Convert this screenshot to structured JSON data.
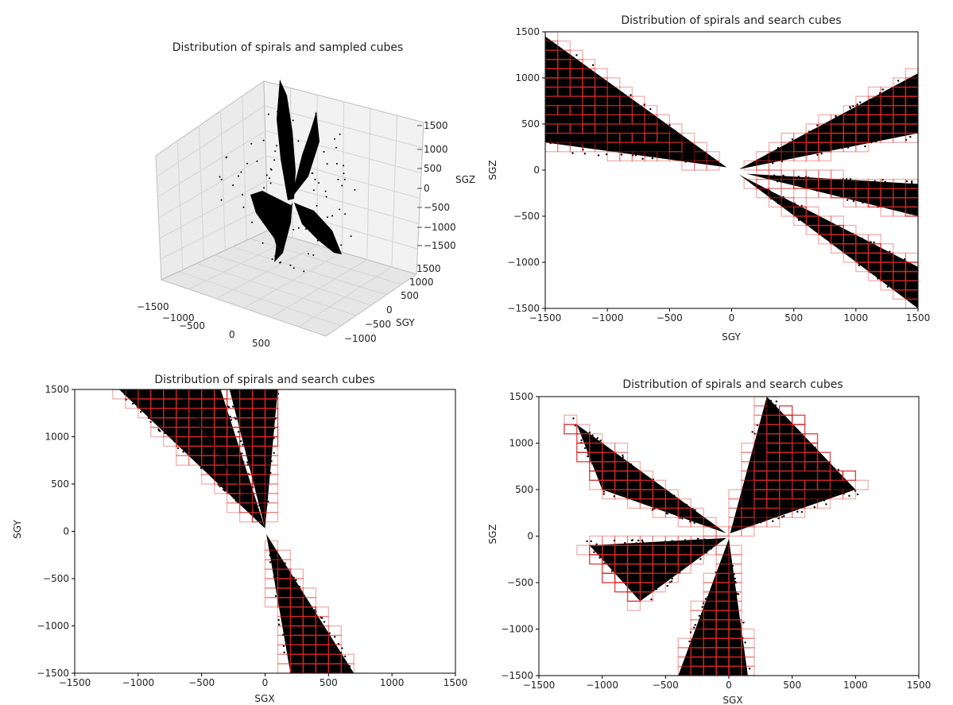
{
  "chart_data": [
    {
      "type": "scatter",
      "title": "Distribution of spirals and sampled cubes",
      "projection": "3d",
      "xlabel": "",
      "ylabel": "SGY",
      "zlabel": "SGZ",
      "xticks": [
        "−1500",
        "−1000",
        "−500",
        "0",
        "500"
      ],
      "yticks": [
        "1500",
        "1000",
        "500",
        "0",
        "−500",
        "−1000"
      ],
      "zticks": [
        "1500",
        "1000",
        "500",
        "0",
        "−500",
        "−1000",
        "−1500"
      ],
      "grid": true,
      "point_color": "#000000"
    },
    {
      "type": "scatter",
      "title": "Distribution of spirals and search cubes",
      "xlabel": "SGY",
      "ylabel": "SGZ",
      "xlim": [
        -1500,
        1500
      ],
      "ylim": [
        -1500,
        1500
      ],
      "xticks": [
        -1500,
        -1000,
        -500,
        0,
        500,
        1000,
        1500
      ],
      "yticks": [
        -1500,
        -1000,
        -500,
        0,
        500,
        1000,
        1500
      ],
      "series": [
        {
          "shape": "wedge",
          "from": [
            -40,
            30
          ],
          "end_a": [
            -1500,
            1450
          ],
          "end_b": [
            -1500,
            300
          ]
        },
        {
          "shape": "wedge",
          "from": [
            60,
            10
          ],
          "end_a": [
            1500,
            1050
          ],
          "end_b": [
            1500,
            400
          ]
        },
        {
          "shape": "wedge",
          "from": [
            120,
            -40
          ],
          "end_a": [
            1500,
            -150
          ],
          "end_b": [
            1500,
            -500
          ]
        },
        {
          "shape": "wedge",
          "from": [
            60,
            -50
          ],
          "end_a": [
            1500,
            -1050
          ],
          "end_b": [
            1500,
            -1500
          ]
        }
      ],
      "cube_size": 100,
      "cube_color": "#d62728"
    },
    {
      "type": "scatter",
      "title": "Distribution of spirals and search cubes",
      "xlabel": "SGX",
      "ylabel": "SGY",
      "xlim": [
        -1500,
        1500
      ],
      "ylim": [
        -1500,
        1500
      ],
      "xticks": [
        -1500,
        -1000,
        -500,
        0,
        500,
        1000,
        1500
      ],
      "yticks": [
        -1500,
        -1000,
        -500,
        0,
        500,
        1000,
        1500
      ],
      "series": [
        {
          "shape": "wedge",
          "from": [
            0,
            30
          ],
          "end_a": [
            -1150,
            1500
          ],
          "end_b": [
            -700,
            1500
          ]
        },
        {
          "shape": "wedge",
          "from": [
            0,
            30
          ],
          "end_a": [
            -700,
            1500
          ],
          "end_b": [
            -350,
            1500
          ]
        },
        {
          "shape": "wedge",
          "from": [
            0,
            30
          ],
          "end_a": [
            -280,
            1500
          ],
          "end_b": [
            100,
            1500
          ]
        },
        {
          "shape": "wedge",
          "from": [
            10,
            -30
          ],
          "end_a": [
            200,
            -1500
          ],
          "end_b": [
            700,
            -1500
          ]
        }
      ],
      "cube_size": 100,
      "cube_color": "#d62728"
    },
    {
      "type": "scatter",
      "title": "Distribution of spirals and search cubes",
      "xlabel": "SGX",
      "ylabel": "SGZ",
      "xlim": [
        -1500,
        1500
      ],
      "ylim": [
        -1500,
        1500
      ],
      "xticks": [
        -1500,
        -1000,
        -500,
        0,
        500,
        1000,
        1500
      ],
      "yticks": [
        -1500,
        -1000,
        -500,
        0,
        500,
        1000,
        1500
      ],
      "series": [
        {
          "shape": "wedge",
          "from": [
            -20,
            30
          ],
          "end_a": [
            -1200,
            1200
          ],
          "end_b": [
            -1000,
            500
          ]
        },
        {
          "shape": "wedge",
          "from": [
            10,
            30
          ],
          "end_a": [
            300,
            1500
          ],
          "end_b": [
            1000,
            500
          ]
        },
        {
          "shape": "wedge",
          "from": [
            -20,
            -20
          ],
          "end_a": [
            -1100,
            -100
          ],
          "end_b": [
            -700,
            -700
          ]
        },
        {
          "shape": "wedge",
          "from": [
            0,
            -30
          ],
          "end_a": [
            -400,
            -1500
          ],
          "end_b": [
            150,
            -1500
          ]
        }
      ],
      "cube_size": 100,
      "cube_color": "#d62728"
    }
  ]
}
